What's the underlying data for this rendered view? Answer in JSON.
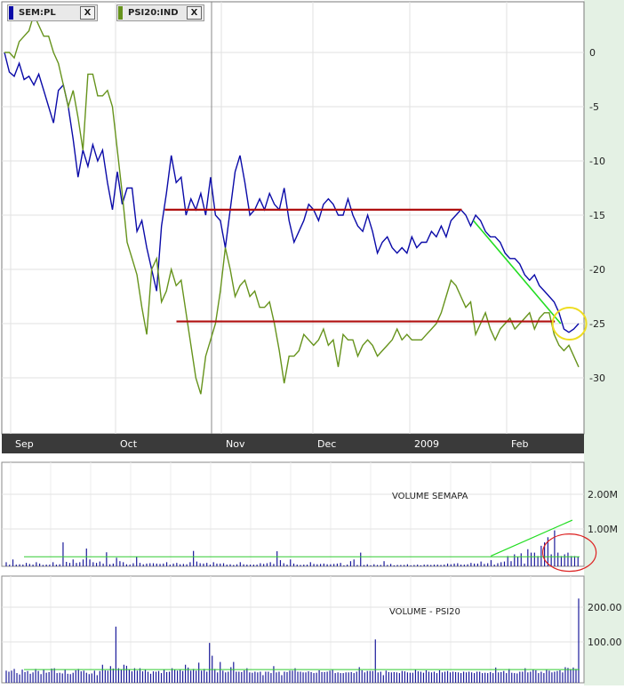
{
  "legend": [
    {
      "name": "SEM:PL",
      "color": "#0a0aa8",
      "close_label": "X"
    },
    {
      "name": "PSI20:IND",
      "color": "#66931c",
      "close_label": "X"
    }
  ],
  "annotation_colors": {
    "support_line": "#b01010",
    "trend_line": "#22dd22",
    "highlight_circle": "#eedd22",
    "volume_circle": "#dd2222",
    "volume_baseline": "#33cc33"
  },
  "chart_data": [
    {
      "type": "line",
      "x_labels": [
        "Sep",
        "Oct",
        "Nov",
        "Dec",
        "2009",
        "Feb"
      ],
      "y_ticks": [
        "0",
        "-5",
        "-10",
        "-15",
        "-20",
        "-25",
        "-30"
      ],
      "ylim": [
        -33,
        4.5
      ],
      "grid": true,
      "legend_position": "top-left",
      "series": [
        {
          "name": "SEM:PL",
          "color": "#0a0aa8",
          "values": [
            0,
            -1.8,
            -2.2,
            -1,
            -2.5,
            -2.2,
            -3,
            -2,
            -3.5,
            -5,
            -6.5,
            -3.5,
            -3,
            -5,
            -8,
            -11.5,
            -9,
            -10.5,
            -8.5,
            -10,
            -9,
            -12,
            -14.5,
            -11,
            -14,
            -12.5,
            -12.5,
            -16.5,
            -15.5,
            -18,
            -20,
            -22,
            -16,
            -13,
            -9.5,
            -12,
            -11.5,
            -15,
            -13.5,
            -14.5,
            -13,
            -15,
            -11.5,
            -15,
            -15.5,
            -18,
            -14.5,
            -11,
            -9.5,
            -12,
            -15,
            -14.5,
            -13.5,
            -14.5,
            -13,
            -14,
            -14.5,
            -12.5,
            -15.5,
            -17.5,
            -16.5,
            -15.5,
            -14,
            -14.5,
            -15.5,
            -14,
            -13.5,
            -14,
            -15,
            -15,
            -13.5,
            -15,
            -16,
            -16.5,
            -15,
            -16.5,
            -18.5,
            -17.5,
            -17,
            -18,
            -18.5,
            -18,
            -18.5,
            -17,
            -18,
            -17.5,
            -17.5,
            -16.5,
            -17,
            -16,
            -17,
            -15.5,
            -15,
            -14.5,
            -15,
            -16,
            -15,
            -15.5,
            -16.5,
            -17,
            -17,
            -17.5,
            -18.5,
            -19,
            -19,
            -19.5,
            -20.5,
            -21,
            -20.5,
            -21.5,
            -22,
            -22.5,
            -23,
            -24,
            -25.5,
            -25.8,
            -25.5,
            -25
          ]
        },
        {
          "name": "PSI20:IND",
          "color": "#66931c",
          "values": [
            0,
            0,
            -0.5,
            1,
            1.5,
            2,
            3.5,
            2.5,
            1.5,
            1.5,
            0,
            -1,
            -3,
            -5,
            -3.5,
            -6,
            -9,
            -2,
            -2,
            -4,
            -4,
            -3.5,
            -5,
            -9,
            -13,
            -17.5,
            -19,
            -20.5,
            -23.5,
            -26,
            -20,
            -19,
            -23,
            -22,
            -20,
            -21.5,
            -21,
            -24,
            -27,
            -30,
            -31.5,
            -28,
            -26.5,
            -25,
            -22,
            -18,
            -20,
            -22.5,
            -21.5,
            -21,
            -22.5,
            -22,
            -23.5,
            -23.5,
            -23,
            -25,
            -27.5,
            -30.5,
            -28,
            -28,
            -27.5,
            -26,
            -26.5,
            -27,
            -26.5,
            -25.5,
            -27,
            -26.5,
            -29,
            -26,
            -26.5,
            -26.5,
            -28,
            -27,
            -26.5,
            -27,
            -28,
            -27.5,
            -27,
            -26.5,
            -25.5,
            -26.5,
            -26,
            -26.5,
            -26.5,
            -26.5,
            -26,
            -25.5,
            -25,
            -24,
            -22.5,
            -21,
            -21.5,
            -22.5,
            -23.5,
            -23,
            -26,
            -25,
            -24,
            -25.5,
            -26.5,
            -25.5,
            -25,
            -24.5,
            -25.5,
            -25,
            -24.5,
            -24,
            -25.5,
            -24.5,
            -24,
            -24,
            -26,
            -27,
            -27.5,
            -27,
            -28,
            -29
          ]
        }
      ],
      "annotations": [
        {
          "type": "hline",
          "y": -14.5,
          "x_range": [
            0.28,
            0.79
          ],
          "color": "#b01010"
        },
        {
          "type": "hline",
          "y": -24.8,
          "x_range": [
            0.3,
            0.95
          ],
          "color": "#b01010"
        },
        {
          "type": "trendline",
          "from": [
            0.81,
            -15.5
          ],
          "to": [
            0.96,
            -25
          ],
          "color": "#22dd22"
        },
        {
          "type": "circle",
          "center": [
            0.975,
            -25
          ],
          "color": "#eedd22"
        }
      ]
    },
    {
      "type": "bar",
      "title": "VOLUME SEMAPA",
      "y_ticks": [
        "2.00M",
        "1.00M"
      ],
      "ylim": [
        0,
        2.6
      ],
      "grid": true,
      "values": [
        0.12,
        0.05,
        0.2,
        0.05,
        0.06,
        0.05,
        0.1,
        0.07,
        0.05,
        0.12,
        0.08,
        0.04,
        0.05,
        0.05,
        0.12,
        0.05,
        0.06,
        0.7,
        0.13,
        0.1,
        0.2,
        0.1,
        0.12,
        0.2,
        0.52,
        0.2,
        0.12,
        0.1,
        0.14,
        0.08,
        0.41,
        0.06,
        0.08,
        0.25,
        0.15,
        0.12,
        0.06,
        0.05,
        0.09,
        0.28,
        0.1,
        0.06,
        0.08,
        0.09,
        0.09,
        0.08,
        0.07,
        0.08,
        0.12,
        0.05,
        0.08,
        0.1,
        0.06,
        0.07,
        0.06,
        0.12,
        0.45,
        0.14,
        0.09,
        0.08,
        0.1,
        0.05,
        0.12,
        0.08,
        0.08,
        0.09,
        0.05,
        0.06,
        0.04,
        0.06,
        0.12,
        0.06,
        0.05,
        0.05,
        0.05,
        0.05,
        0.09,
        0.07,
        0.09,
        0.12,
        0.07,
        0.44,
        0.18,
        0.09,
        0.05,
        0.2,
        0.08,
        0.05,
        0.04,
        0.05,
        0.05,
        0.12,
        0.07,
        0.06,
        0.07,
        0.08,
        0.06,
        0.06,
        0.07,
        0.08,
        0.1,
        0.03,
        0.05,
        0.15,
        0.2,
        0.04,
        0.4,
        0.04,
        0.06,
        0.03,
        0.06,
        0.04,
        0.04,
        0.15,
        0.04,
        0.07,
        0.03,
        0.04,
        0.04,
        0.04,
        0.06,
        0.03,
        0.04,
        0.05,
        0.03,
        0.05,
        0.05,
        0.04,
        0.05,
        0.05,
        0.04,
        0.05,
        0.08,
        0.06,
        0.08,
        0.09,
        0.05,
        0.05,
        0.06,
        0.1,
        0.08,
        0.08,
        0.14,
        0.07,
        0.09,
        0.18,
        0.05,
        0.09,
        0.12,
        0.14,
        0.3,
        0.15,
        0.35,
        0.28,
        0.38,
        0.08,
        0.5,
        0.4,
        0.4,
        0.3,
        0.6,
        0.7,
        0.85,
        0.35,
        1.05,
        0.4,
        0.3,
        0.35,
        0.4,
        0.3,
        0.3,
        0.28
      ],
      "baseline": 0.28,
      "annotations": [
        {
          "type": "trendline",
          "from": [
            0.84,
            0.3
          ],
          "to": [
            0.98,
            1.35
          ],
          "color": "#22dd22"
        },
        {
          "type": "ellipse",
          "center": [
            0.975,
            0.4
          ],
          "color": "#dd2222"
        }
      ]
    },
    {
      "type": "bar",
      "title": "VOLUME - PSI20",
      "y_ticks": [
        "200.00",
        "100.00"
      ],
      "ylim": [
        0,
        245
      ],
      "grid": true,
      "values": [
        35,
        32,
        35,
        40,
        28,
        24,
        38,
        31,
        34,
        26,
        30,
        40,
        34,
        25,
        38,
        29,
        31,
        41,
        42,
        28,
        29,
        27,
        38,
        26,
        25,
        29,
        36,
        40,
        33,
        35,
        29,
        25,
        27,
        35,
        22,
        34,
        52,
        36,
        35,
        48,
        41,
        162,
        42,
        38,
        52,
        49,
        38,
        33,
        42,
        35,
        42,
        33,
        38,
        32,
        26,
        33,
        32,
        34,
        28,
        38,
        31,
        32,
        42,
        38,
        35,
        37,
        34,
        52,
        44,
        35,
        40,
        35,
        58,
        35,
        40,
        32,
        115,
        78,
        40,
        30,
        60,
        35,
        30,
        32,
        45,
        60,
        32,
        32,
        31,
        36,
        42,
        30,
        29,
        32,
        30,
        32,
        22,
        32,
        32,
        28,
        48,
        30,
        32,
        22,
        32,
        31,
        35,
        35,
        42,
        32,
        32,
        30,
        30,
        33,
        31,
        28,
        29,
        36,
        31,
        31,
        32,
        35,
        37,
        28,
        30,
        28,
        28,
        30,
        30,
        31,
        28,
        32,
        45,
        36,
        30,
        34,
        34,
        34,
        125,
        30,
        32,
        22,
        35,
        31,
        30,
        31,
        30,
        28,
        34,
        33,
        30,
        29,
        29,
        38,
        33,
        32,
        29,
        36,
        32,
        30,
        32,
        28,
        36,
        30,
        32,
        34,
        30,
        32,
        31,
        30,
        28,
        32,
        30,
        32,
        30,
        28,
        32,
        32,
        28,
        29,
        28,
        31,
        28,
        44,
        30,
        31,
        34,
        28,
        40,
        29,
        28,
        27,
        32,
        32,
        42,
        30,
        32,
        38,
        36,
        28,
        32,
        28,
        37,
        35,
        30,
        32,
        34,
        36,
        30,
        45,
        43,
        38,
        44,
        40,
        243
      ],
      "baseline": 38
    }
  ]
}
